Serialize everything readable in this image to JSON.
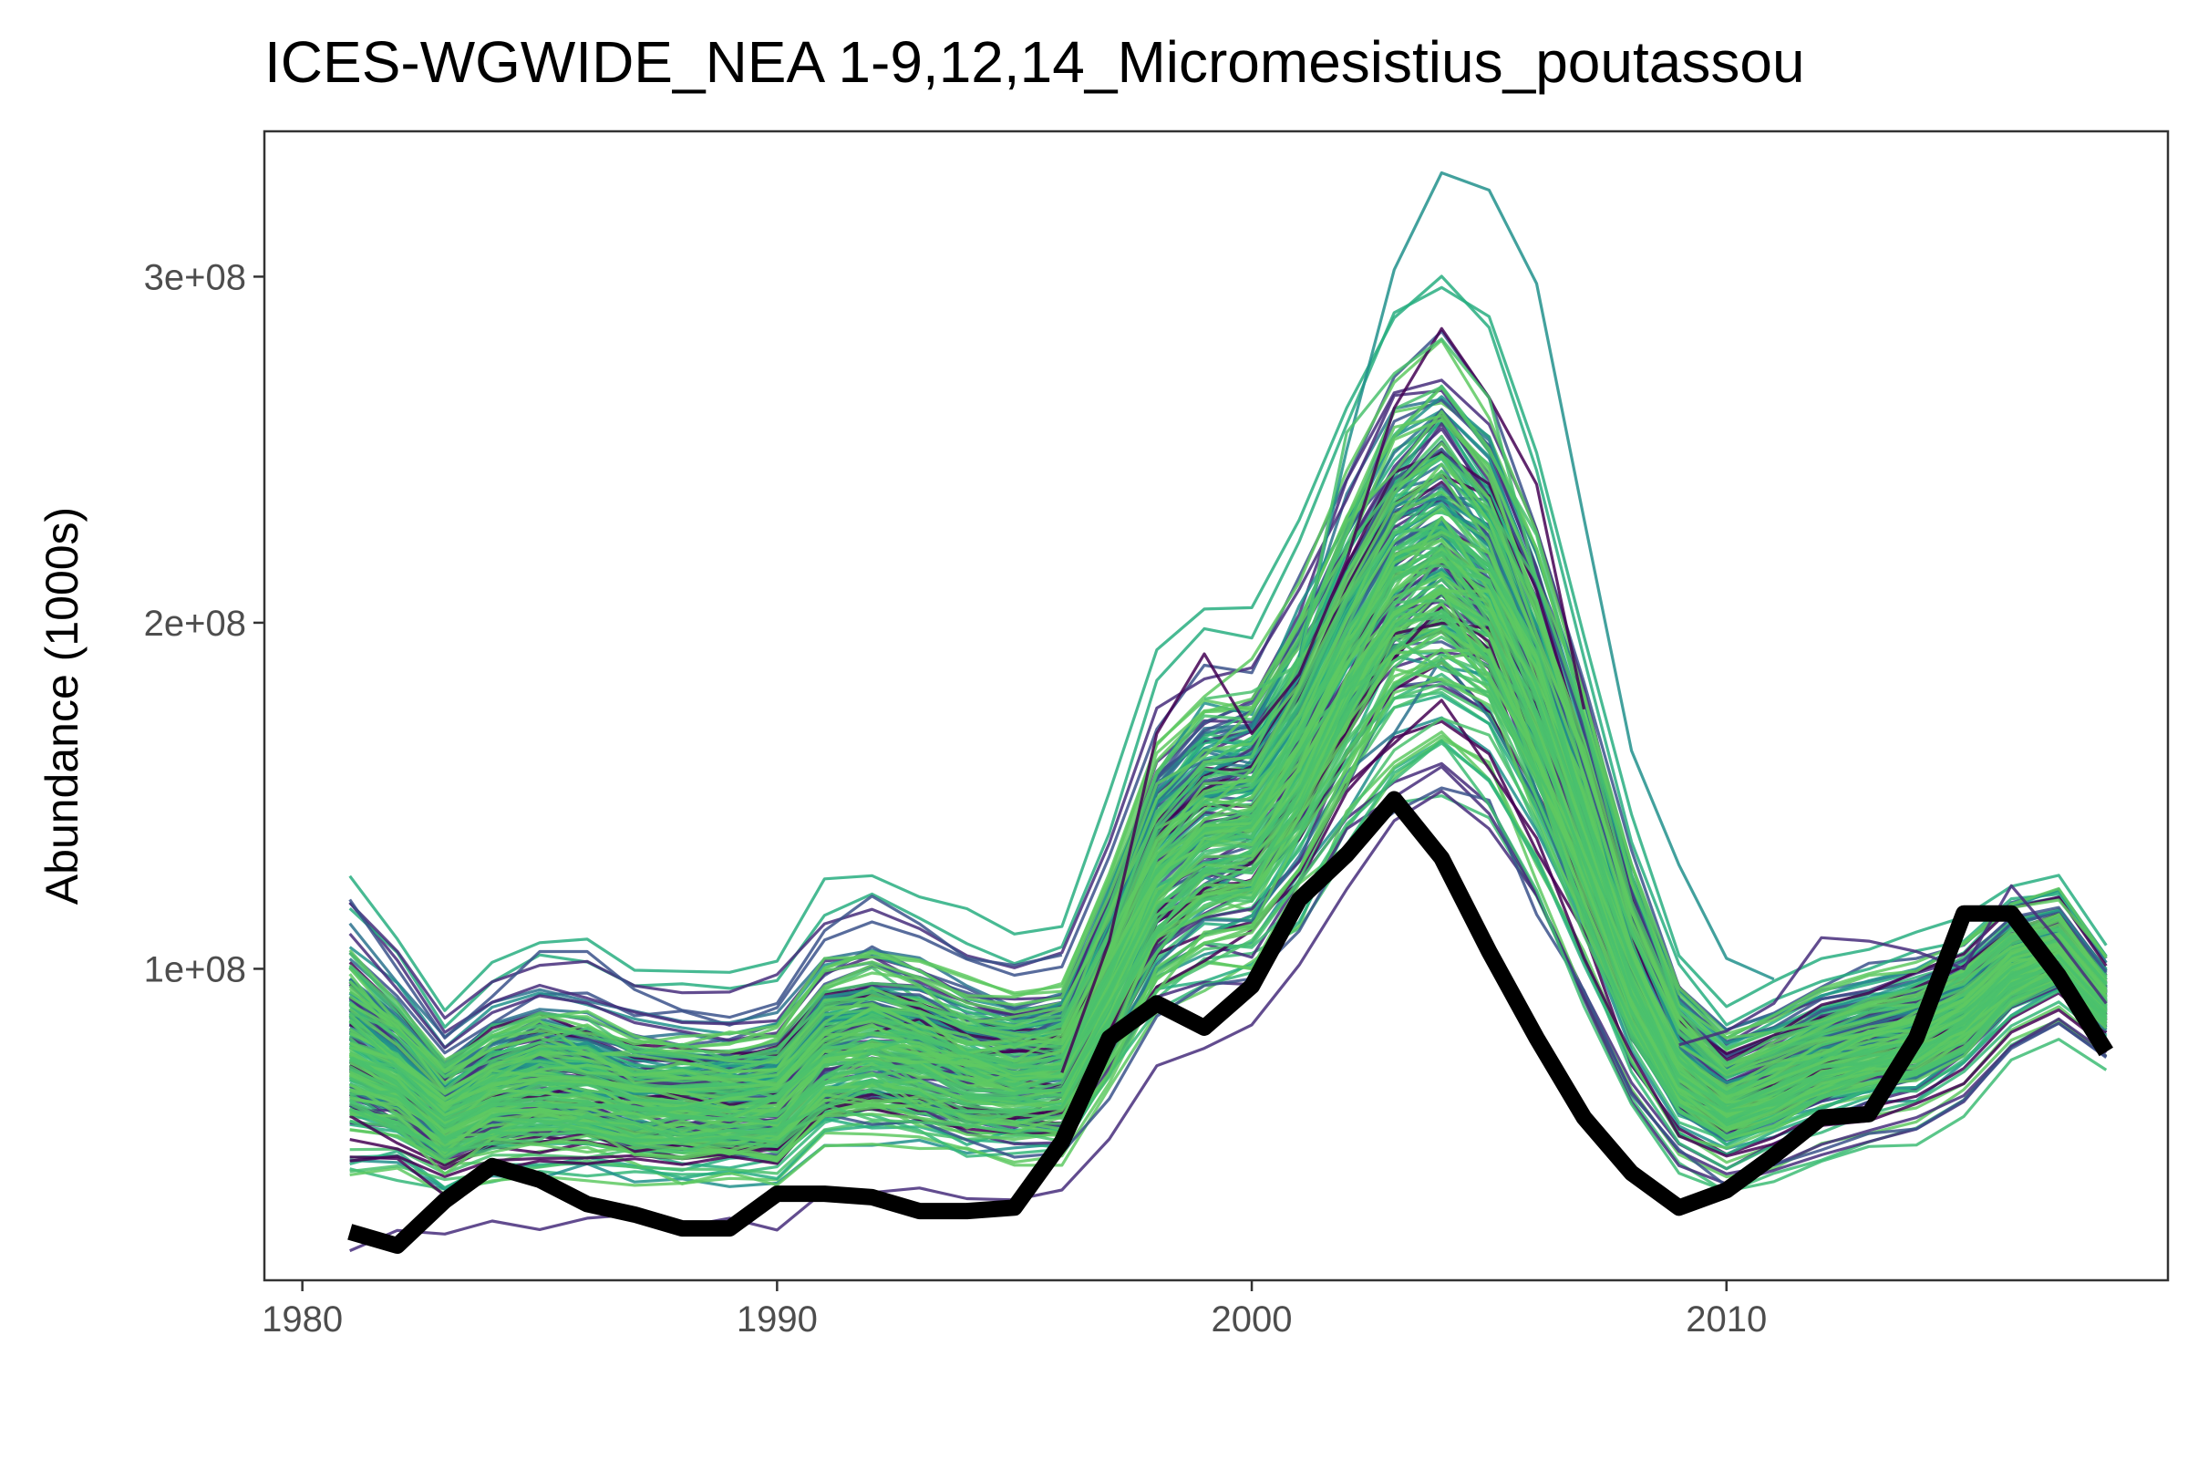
{
  "chart_data": {
    "type": "line",
    "title": "ICES-WGWIDE_NEA 1-9,12,14_Micromesistius_poutassou",
    "xlabel": "",
    "ylabel": "Abundance (1000s)",
    "xlim": [
      1979.2,
      2019.3
    ],
    "ylim": [
      10000000,
      342000000
    ],
    "x_ticks": [
      1980,
      1990,
      2000,
      2010
    ],
    "x_tick_labels": [
      "1980",
      "1990",
      "2000",
      "2010"
    ],
    "y_ticks": [
      100000000,
      200000000,
      300000000
    ],
    "y_tick_labels": [
      "1e+08",
      "2e+08",
      "3e+08"
    ],
    "grid": false,
    "legend": "none",
    "x": [
      1981,
      1982,
      1983,
      1984,
      1985,
      1986,
      1987,
      1988,
      1989,
      1990,
      1991,
      1992,
      1993,
      1994,
      1995,
      1996,
      1997,
      1998,
      1999,
      2000,
      2001,
      2002,
      2003,
      2004,
      2005,
      2006,
      2007,
      2008,
      2009,
      2010,
      2011,
      2012,
      2013,
      2014,
      2015,
      2016,
      2017,
      2018
    ],
    "observed": {
      "color": "#000000",
      "values": [
        24000000,
        20000000,
        33000000,
        43000000,
        39000000,
        32000000,
        29000000,
        25000000,
        25000000,
        35000000,
        35000000,
        34000000,
        30000000,
        30000000,
        31000000,
        50000000,
        80000000,
        90000000,
        83000000,
        95000000,
        120000000,
        133000000,
        149000000,
        132000000,
        105000000,
        80000000,
        57000000,
        41000000,
        31000000,
        36000000,
        46000000,
        57000000,
        58000000,
        80000000,
        116000000,
        116000000,
        98000000,
        76000000
      ]
    },
    "ensemble": {
      "palette": [
        "#440154",
        "#472d7b",
        "#3b528b",
        "#2c728e",
        "#21918c",
        "#28ae80",
        "#5ec962",
        "#4ac16d",
        "#35b779",
        "#3dbc74"
      ],
      "center": [
        78000000,
        70000000,
        58000000,
        65000000,
        68000000,
        67000000,
        63000000,
        62000000,
        62000000,
        63000000,
        77000000,
        80000000,
        77000000,
        72000000,
        70000000,
        72000000,
        98000000,
        128000000,
        140000000,
        142000000,
        163000000,
        190000000,
        212000000,
        220000000,
        208000000,
        178000000,
        140000000,
        100000000,
        72000000,
        62000000,
        67000000,
        73000000,
        77000000,
        80000000,
        87000000,
        100000000,
        105000000,
        90000000
      ],
      "spread": [
        19000000,
        15000000,
        12000000,
        14000000,
        16000000,
        15000000,
        14000000,
        14000000,
        14000000,
        15000000,
        17000000,
        18000000,
        17000000,
        16000000,
        15000000,
        16000000,
        20000000,
        24000000,
        26000000,
        26000000,
        28000000,
        31000000,
        34000000,
        34000000,
        32000000,
        29000000,
        24000000,
        18000000,
        13000000,
        11000000,
        11000000,
        11000000,
        11000000,
        11000000,
        10000000,
        9000000,
        8000000,
        6000000
      ],
      "outliers": [
        {
          "color": "#21918c",
          "values": [
            null,
            null,
            null,
            null,
            null,
            null,
            null,
            null,
            null,
            null,
            null,
            null,
            null,
            null,
            null,
            null,
            null,
            null,
            null,
            null,
            190000000,
            250000000,
            302000000,
            330000000,
            325000000,
            298000000,
            230000000,
            163000000,
            130000000,
            103000000,
            97000000,
            null,
            null,
            null,
            null,
            null,
            null,
            null
          ]
        },
        {
          "color": "#440154",
          "values": [
            null,
            null,
            null,
            null,
            null,
            null,
            null,
            null,
            null,
            null,
            null,
            null,
            null,
            null,
            null,
            70000000,
            108000000,
            168000000,
            191000000,
            168000000,
            185000000,
            218000000,
            262000000,
            285000000,
            265000000,
            240000000,
            175000000,
            null,
            null,
            null,
            null,
            null,
            null,
            null,
            null,
            null,
            null,
            null
          ]
        },
        {
          "color": "#3b528b",
          "values": [
            120000000,
            100000000,
            80000000,
            92000000,
            105000000,
            105000000,
            94000000,
            88000000,
            86000000,
            90000000,
            111000000,
            121000000,
            113000000,
            103000000,
            101000000,
            104000000,
            null,
            null,
            null,
            null,
            null,
            null,
            null,
            null,
            null,
            null,
            null,
            null,
            null,
            null,
            null,
            null,
            null,
            null,
            null,
            null,
            null,
            null
          ]
        },
        {
          "color": "#4ac16d",
          "values": [
            null,
            null,
            null,
            null,
            null,
            null,
            null,
            null,
            null,
            null,
            null,
            null,
            null,
            null,
            null,
            null,
            null,
            null,
            178000000,
            180000000,
            188000000,
            255000000,
            272000000,
            282000000,
            265000000,
            212000000,
            null,
            null,
            null,
            null,
            null,
            null,
            null,
            null,
            null,
            null,
            null,
            null
          ]
        },
        {
          "color": "#472d7b",
          "values": [
            null,
            null,
            null,
            null,
            null,
            null,
            null,
            null,
            null,
            null,
            null,
            null,
            null,
            null,
            null,
            null,
            null,
            null,
            null,
            null,
            null,
            null,
            null,
            null,
            null,
            null,
            null,
            null,
            78000000,
            82000000,
            90000000,
            109000000,
            108000000,
            105000000,
            100000000,
            124000000,
            108000000,
            90000000
          ]
        }
      ]
    }
  }
}
